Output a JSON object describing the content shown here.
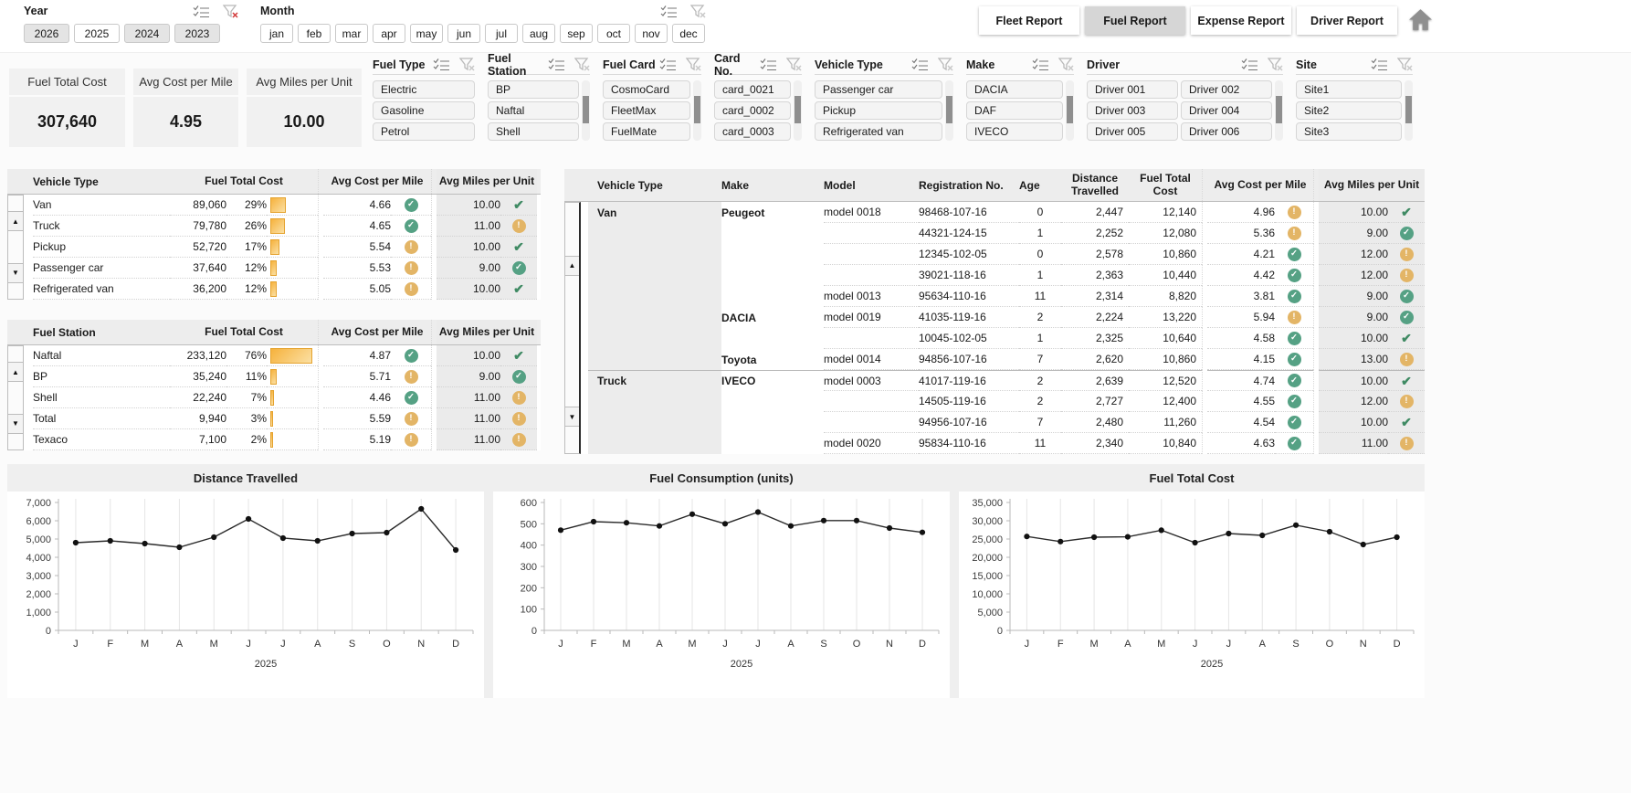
{
  "topbar": {
    "year": {
      "label": "Year",
      "items": [
        {
          "label": "2026",
          "selected": true
        },
        {
          "label": "2025",
          "selected": false
        },
        {
          "label": "2024",
          "selected": true
        },
        {
          "label": "2023",
          "selected": true
        }
      ]
    },
    "month": {
      "label": "Month",
      "items": [
        "jan",
        "feb",
        "mar",
        "apr",
        "may",
        "jun",
        "jul",
        "aug",
        "sep",
        "oct",
        "nov",
        "dec"
      ]
    },
    "tabs": [
      {
        "label": "Fleet Report",
        "active": false
      },
      {
        "label": "Fuel Report",
        "active": true
      },
      {
        "label": "Expense Report",
        "active": false
      },
      {
        "label": "Driver Report",
        "active": false
      }
    ]
  },
  "kpis": [
    {
      "title": "Fuel Total Cost",
      "value": "307,640"
    },
    {
      "title": "Avg Cost per Mile",
      "value": "4.95"
    },
    {
      "title": "Avg Miles per Unit",
      "value": "10.00"
    }
  ],
  "slicers": [
    {
      "title": "Fuel Type",
      "items": [
        "Electric",
        "Gasoline",
        "Petrol"
      ],
      "scrollbar": false
    },
    {
      "title": "Fuel Station",
      "items": [
        "BP",
        "Naftal",
        "Shell"
      ],
      "scrollbar": true
    },
    {
      "title": "Fuel Card",
      "items": [
        "CosmoCard",
        "FleetMax",
        "FuelMate"
      ],
      "scrollbar": true
    },
    {
      "title": "Card No.",
      "items": [
        "card_0021",
        "card_0002",
        "card_0003"
      ],
      "scrollbar": true
    },
    {
      "title": "Vehicle Type",
      "items": [
        "Passenger car",
        "Pickup",
        "Refrigerated van"
      ],
      "scrollbar": true
    },
    {
      "title": "Make",
      "items": [
        "DACIA",
        "DAF",
        "IVECO"
      ],
      "scrollbar": true
    },
    {
      "title": "Driver",
      "items": [
        "Driver 001",
        "Driver 002",
        "Driver 003",
        "Driver 004",
        "Driver 005",
        "Driver 006"
      ],
      "scrollbar": true,
      "columns": 2
    },
    {
      "title": "Site",
      "items": [
        "Site1",
        "Site2",
        "Site3"
      ],
      "scrollbar": true
    }
  ],
  "left_tables": [
    {
      "headers": [
        "Vehicle Type",
        "Fuel Total Cost",
        "Avg Cost per Mile",
        "Avg Miles per Unit"
      ],
      "filtered_marker": true,
      "rows": [
        {
          "name": "Van",
          "cost": "89,060",
          "pct": "29%",
          "pct_val": 29,
          "avg_cost": "4.66",
          "cost_icon": "green-circle",
          "miles": "10.00",
          "miles_icon": "green-check"
        },
        {
          "name": "Truck",
          "cost": "79,780",
          "pct": "26%",
          "pct_val": 26,
          "avg_cost": "4.65",
          "cost_icon": "green-circle",
          "miles": "11.00",
          "miles_icon": "amber-circle"
        },
        {
          "name": "Pickup",
          "cost": "52,720",
          "pct": "17%",
          "pct_val": 17,
          "avg_cost": "5.54",
          "cost_icon": "amber-circle",
          "miles": "10.00",
          "miles_icon": "green-check"
        },
        {
          "name": "Passenger car",
          "cost": "37,640",
          "pct": "12%",
          "pct_val": 12,
          "avg_cost": "5.53",
          "cost_icon": "amber-circle",
          "miles": "9.00",
          "miles_icon": "green-circle"
        },
        {
          "name": "Refrigerated van",
          "cost": "36,200",
          "pct": "12%",
          "pct_val": 12,
          "avg_cost": "5.05",
          "cost_icon": "amber-circle",
          "miles": "10.00",
          "miles_icon": "green-check"
        }
      ]
    },
    {
      "headers": [
        "Fuel Station",
        "Fuel Total Cost",
        "Avg Cost per Mile",
        "Avg Miles per Unit"
      ],
      "filtered_marker": true,
      "rows": [
        {
          "name": "Naftal",
          "cost": "233,120",
          "pct": "76%",
          "pct_val": 76,
          "avg_cost": "4.87",
          "cost_icon": "green-circle",
          "miles": "10.00",
          "miles_icon": "green-check"
        },
        {
          "name": "BP",
          "cost": "35,240",
          "pct": "11%",
          "pct_val": 11,
          "avg_cost": "5.71",
          "cost_icon": "amber-circle",
          "miles": "9.00",
          "miles_icon": "green-circle"
        },
        {
          "name": "Shell",
          "cost": "22,240",
          "pct": "7%",
          "pct_val": 7,
          "avg_cost": "4.46",
          "cost_icon": "green-circle",
          "miles": "11.00",
          "miles_icon": "amber-circle"
        },
        {
          "name": "Total",
          "cost": "9,940",
          "pct": "3%",
          "pct_val": 3,
          "avg_cost": "5.59",
          "cost_icon": "amber-circle",
          "miles": "11.00",
          "miles_icon": "amber-circle"
        },
        {
          "name": "Texaco",
          "cost": "7,100",
          "pct": "2%",
          "pct_val": 2,
          "avg_cost": "5.19",
          "cost_icon": "amber-circle",
          "miles": "11.00",
          "miles_icon": "amber-circle"
        }
      ]
    }
  ],
  "right_table": {
    "headers": {
      "vehicle": "Vehicle Type",
      "make": "Make",
      "model": "Model",
      "reg": "Registration No.",
      "age": "Age",
      "distance": "Distance Travelled",
      "cost": "Fuel Total Cost",
      "avg_cost": "Avg Cost per Mile",
      "miles": "Avg Miles per Unit"
    },
    "filtered_marker": true,
    "rows": [
      {
        "vehicle": "Van",
        "make": "Peugeot",
        "model": "model 0018",
        "reg": "98468-107-16",
        "age": "0",
        "distance": "2,447",
        "cost": "12,140",
        "avg_cost": "4.96",
        "cost_icon": "amber-circle",
        "miles": "10.00",
        "miles_icon": "green-check"
      },
      {
        "vehicle": "",
        "make": "",
        "model": "",
        "reg": "44321-124-15",
        "age": "1",
        "distance": "2,252",
        "cost": "12,080",
        "avg_cost": "5.36",
        "cost_icon": "amber-circle",
        "miles": "9.00",
        "miles_icon": "green-circle"
      },
      {
        "vehicle": "",
        "make": "",
        "model": "",
        "reg": "12345-102-05",
        "age": "0",
        "distance": "2,578",
        "cost": "10,860",
        "avg_cost": "4.21",
        "cost_icon": "green-circle",
        "miles": "12.00",
        "miles_icon": "amber-circle"
      },
      {
        "vehicle": "",
        "make": "",
        "model": "",
        "reg": "39021-118-16",
        "age": "1",
        "distance": "2,363",
        "cost": "10,440",
        "avg_cost": "4.42",
        "cost_icon": "green-circle",
        "miles": "12.00",
        "miles_icon": "amber-circle"
      },
      {
        "vehicle": "",
        "make": "",
        "model": "model 0013",
        "reg": "95634-110-16",
        "age": "11",
        "distance": "2,314",
        "cost": "8,820",
        "avg_cost": "3.81",
        "cost_icon": "green-circle",
        "miles": "9.00",
        "miles_icon": "green-circle"
      },
      {
        "vehicle": "",
        "make": "DACIA",
        "model": "model 0019",
        "reg": "41035-119-16",
        "age": "2",
        "distance": "2,224",
        "cost": "13,220",
        "avg_cost": "5.94",
        "cost_icon": "amber-circle",
        "miles": "9.00",
        "miles_icon": "green-circle"
      },
      {
        "vehicle": "",
        "make": "",
        "model": "",
        "reg": "10045-102-05",
        "age": "1",
        "distance": "2,325",
        "cost": "10,640",
        "avg_cost": "4.58",
        "cost_icon": "green-circle",
        "miles": "10.00",
        "miles_icon": "green-check"
      },
      {
        "vehicle": "",
        "make": "Toyota",
        "model": "model 0014",
        "reg": "94856-107-16",
        "age": "7",
        "distance": "2,620",
        "cost": "10,860",
        "avg_cost": "4.15",
        "cost_icon": "green-circle",
        "miles": "13.00",
        "miles_icon": "amber-circle"
      },
      {
        "vehicle": "Truck",
        "make": "IVECO",
        "model": "model 0003",
        "reg": "41017-119-16",
        "age": "2",
        "distance": "2,639",
        "cost": "12,520",
        "avg_cost": "4.74",
        "cost_icon": "green-circle",
        "miles": "10.00",
        "miles_icon": "green-check",
        "group_start": true
      },
      {
        "vehicle": "",
        "make": "",
        "model": "",
        "reg": "14505-119-16",
        "age": "2",
        "distance": "2,727",
        "cost": "12,400",
        "avg_cost": "4.55",
        "cost_icon": "green-circle",
        "miles": "12.00",
        "miles_icon": "amber-circle"
      },
      {
        "vehicle": "",
        "make": "",
        "model": "",
        "reg": "94956-107-16",
        "age": "7",
        "distance": "2,480",
        "cost": "11,260",
        "avg_cost": "4.54",
        "cost_icon": "green-circle",
        "miles": "10.00",
        "miles_icon": "green-check"
      },
      {
        "vehicle": "",
        "make": "",
        "model": "model 0020",
        "reg": "95834-110-16",
        "age": "11",
        "distance": "2,340",
        "cost": "10,840",
        "avg_cost": "4.63",
        "cost_icon": "green-circle",
        "miles": "11.00",
        "miles_icon": "amber-circle"
      }
    ]
  },
  "chart_data": [
    {
      "type": "line",
      "title": "Distance Travelled",
      "x": [
        "J",
        "F",
        "M",
        "A",
        "M",
        "J",
        "J",
        "A",
        "S",
        "O",
        "N",
        "D"
      ],
      "values": [
        4800,
        4900,
        4750,
        4550,
        5100,
        6100,
        5050,
        4900,
        5300,
        5350,
        6650,
        4400
      ],
      "ylim": [
        0,
        7000
      ],
      "ytick": 1000,
      "xlabel": "2025",
      "grid": "vertical",
      "legend": "none"
    },
    {
      "type": "line",
      "title": "Fuel Consumption (units)",
      "x": [
        "J",
        "F",
        "M",
        "A",
        "M",
        "J",
        "J",
        "A",
        "S",
        "O",
        "N",
        "D"
      ],
      "values": [
        470,
        510,
        505,
        490,
        545,
        500,
        555,
        490,
        515,
        515,
        480,
        460
      ],
      "ylim": [
        0,
        600
      ],
      "ytick": 100,
      "xlabel": "2025",
      "grid": "vertical",
      "legend": "none"
    },
    {
      "type": "line",
      "title": "Fuel Total Cost",
      "x": [
        "J",
        "F",
        "M",
        "A",
        "M",
        "J",
        "J",
        "A",
        "S",
        "O",
        "N",
        "D"
      ],
      "values": [
        25700,
        24300,
        25500,
        25600,
        27400,
        24000,
        26500,
        26000,
        28800,
        27000,
        23500,
        25500
      ],
      "ylim": [
        0,
        35000
      ],
      "ytick": 5000,
      "xlabel": "2025",
      "grid": "vertical",
      "legend": "none"
    }
  ],
  "icon_glyphs": {
    "green-circle": "✓",
    "amber-circle": "!",
    "green-check": "✔"
  },
  "colors": {
    "bar_orange": "#f6b23d",
    "green": "#55a184",
    "amber": "#e3b566",
    "check_green": "#3f8a63",
    "tab_active": "#d6d6d6",
    "corner_red": "#c00000"
  }
}
